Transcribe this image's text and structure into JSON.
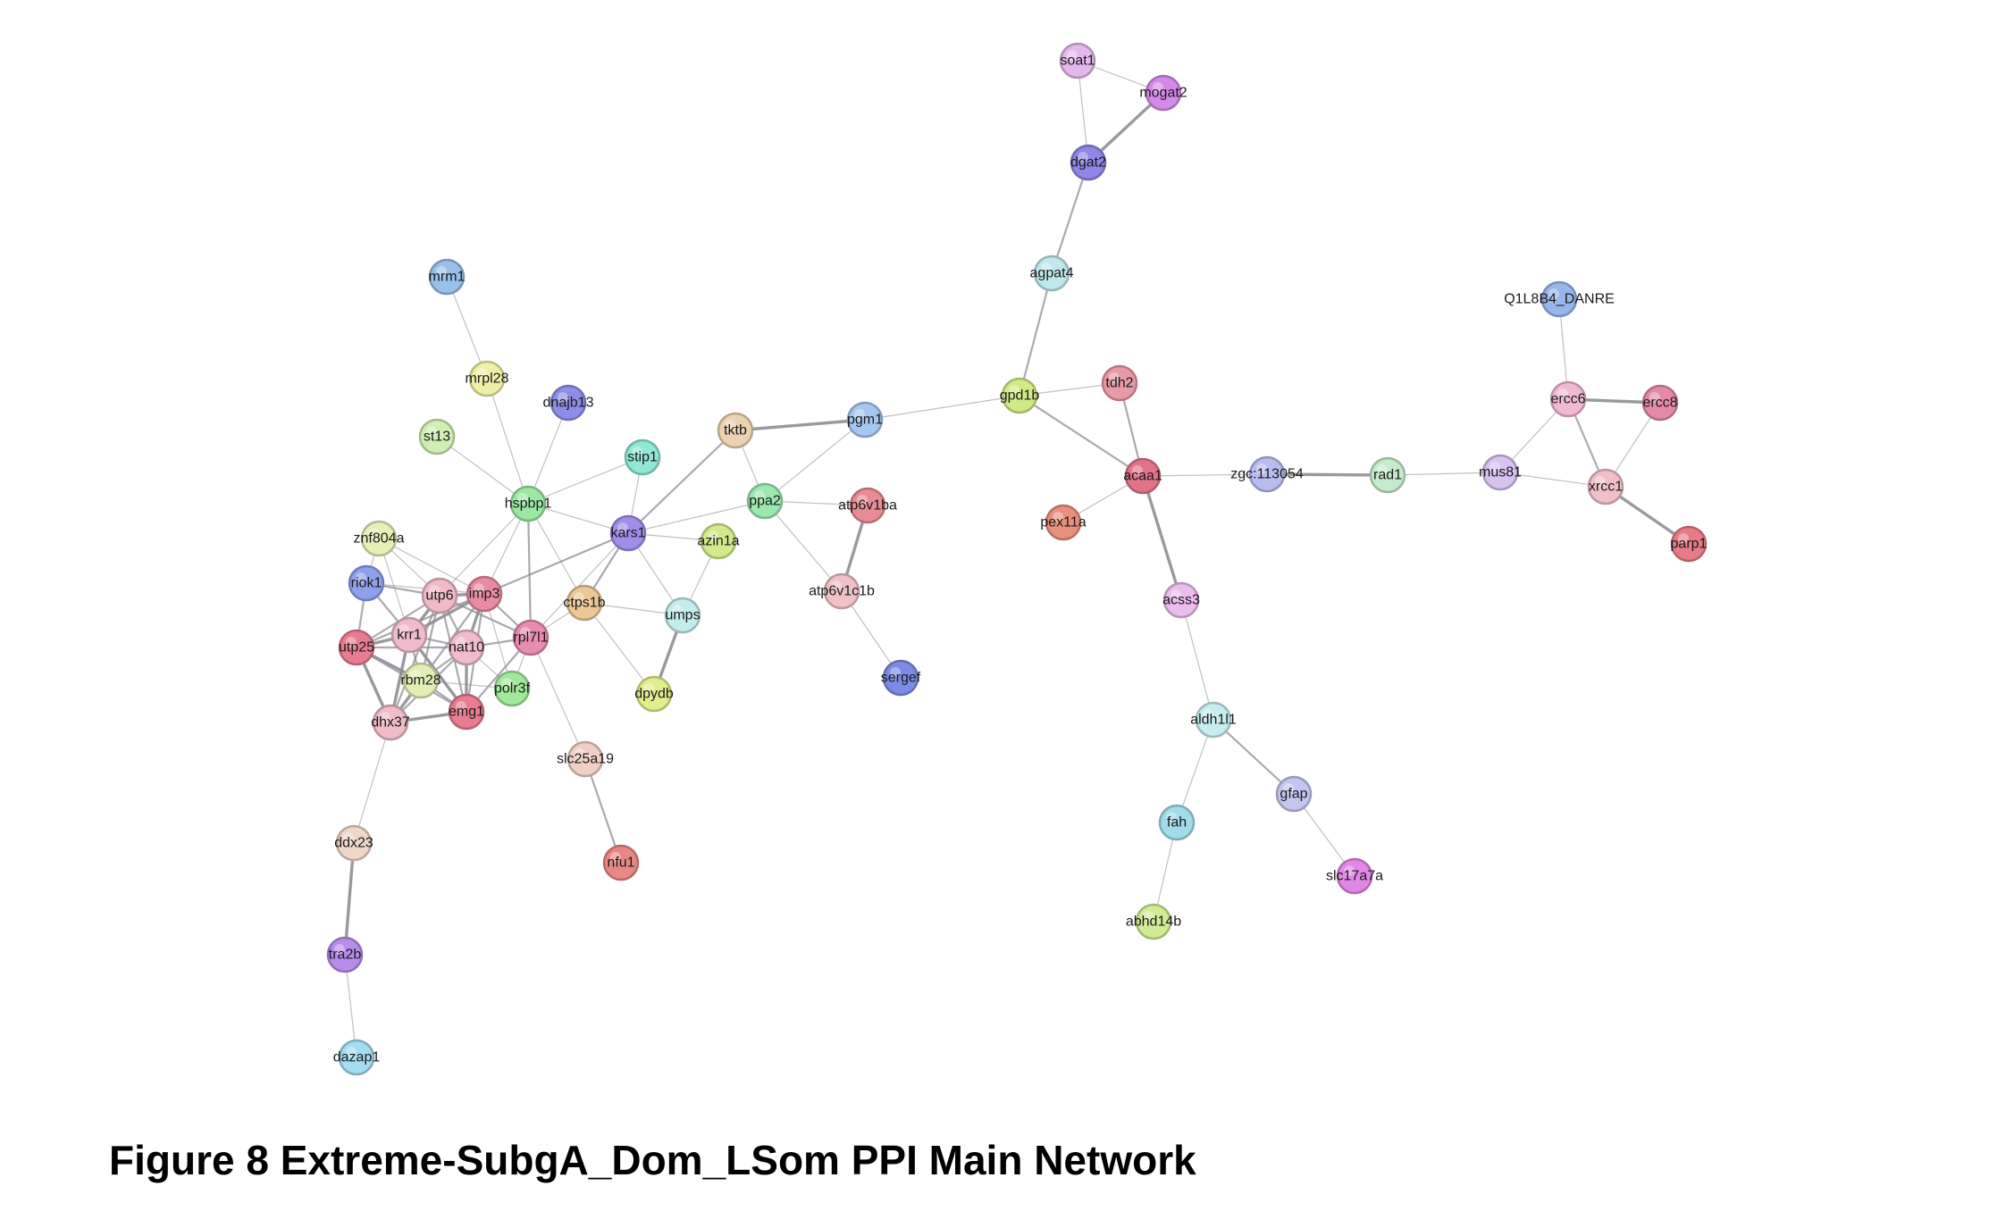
{
  "caption": "Figure 8 Extreme-SubgA_Dom_LSom PPI Main Network",
  "nodes": [
    {
      "id": "soat1",
      "color": "#e3b8ec"
    },
    {
      "id": "mogat2",
      "color": "#d48ae8"
    },
    {
      "id": "dgat2",
      "color": "#8f86e6"
    },
    {
      "id": "agpat4",
      "color": "#bfe8ec"
    },
    {
      "id": "gpd1b",
      "color": "#d2ea86"
    },
    {
      "id": "tdh2",
      "color": "#e89aa6"
    },
    {
      "id": "acaa1",
      "color": "#e2748a"
    },
    {
      "id": "pex11a",
      "color": "#e8907e"
    },
    {
      "id": "zgc:113054",
      "color": "#b8bcf0"
    },
    {
      "id": "rad1",
      "color": "#c4eccc"
    },
    {
      "id": "mus81",
      "color": "#d8c2f0"
    },
    {
      "id": "Q1L8B4_DANRE",
      "color": "#98b6ec"
    },
    {
      "id": "ercc6",
      "color": "#f0bad6"
    },
    {
      "id": "ercc8",
      "color": "#e48aa8"
    },
    {
      "id": "xrcc1",
      "color": "#f0c0c8"
    },
    {
      "id": "parp1",
      "color": "#e87c86"
    },
    {
      "id": "acss3",
      "color": "#ecbcec"
    },
    {
      "id": "aldh1l1",
      "color": "#c6eef0"
    },
    {
      "id": "gfap",
      "color": "#c4c6f0"
    },
    {
      "id": "fah",
      "color": "#a2dcea"
    },
    {
      "id": "slc17a7a",
      "color": "#e286e8"
    },
    {
      "id": "abhd14b",
      "color": "#d2ec96"
    },
    {
      "id": "mrm1",
      "color": "#98c0ea"
    },
    {
      "id": "mrpl28",
      "color": "#eef0a8"
    },
    {
      "id": "dnajb13",
      "color": "#8e8ee8"
    },
    {
      "id": "st13",
      "color": "#d0eeb6"
    },
    {
      "id": "stip1",
      "color": "#90e8d4"
    },
    {
      "id": "tktb",
      "color": "#ecd2b0"
    },
    {
      "id": "pgm1",
      "color": "#a6c8f0"
    },
    {
      "id": "hspbp1",
      "color": "#9ce8a2"
    },
    {
      "id": "ppa2",
      "color": "#9ce8b0"
    },
    {
      "id": "atp6v1ba",
      "color": "#e88c94"
    },
    {
      "id": "znf804a",
      "color": "#e8eeb8"
    },
    {
      "id": "kars1",
      "color": "#a08ee8"
    },
    {
      "id": "azin1a",
      "color": "#d2ea8a"
    },
    {
      "id": "riok1",
      "color": "#8ea0ec"
    },
    {
      "id": "utp6",
      "color": "#f0bac8"
    },
    {
      "id": "imp3",
      "color": "#e88ca2"
    },
    {
      "id": "ctps1b",
      "color": "#ecc896"
    },
    {
      "id": "atp6v1c1b",
      "color": "#f0c2c8"
    },
    {
      "id": "umps",
      "color": "#c4ecec"
    },
    {
      "id": "krr1",
      "color": "#f0bccc"
    },
    {
      "id": "utp25",
      "color": "#e87c90"
    },
    {
      "id": "nat10",
      "color": "#f0bccc"
    },
    {
      "id": "rpl7l1",
      "color": "#e88cb0"
    },
    {
      "id": "sergef",
      "color": "#7c8ce4"
    },
    {
      "id": "rbm28",
      "color": "#e2eeb6"
    },
    {
      "id": "polr3f",
      "color": "#a2e89c"
    },
    {
      "id": "dpydb",
      "color": "#e2ee8c"
    },
    {
      "id": "dhx37",
      "color": "#f0bcc8"
    },
    {
      "id": "emg1",
      "color": "#e87c90"
    },
    {
      "id": "slc25a19",
      "color": "#f0d0c4"
    },
    {
      "id": "nfu1",
      "color": "#e88884"
    },
    {
      "id": "ddx23",
      "color": "#f0d6c8"
    },
    {
      "id": "tra2b",
      "color": "#b88cea"
    },
    {
      "id": "dazap1",
      "color": "#a6dcf0"
    }
  ],
  "edges": [
    [
      "soat1",
      "mogat2",
      1
    ],
    [
      "soat1",
      "dgat2",
      1
    ],
    [
      "mogat2",
      "dgat2",
      3
    ],
    [
      "dgat2",
      "agpat4",
      2
    ],
    [
      "agpat4",
      "gpd1b",
      2
    ],
    [
      "gpd1b",
      "tdh2",
      1
    ],
    [
      "gpd1b",
      "acaa1",
      2
    ],
    [
      "gpd1b",
      "pgm1",
      1
    ],
    [
      "tdh2",
      "acaa1",
      2
    ],
    [
      "acaa1",
      "pex11a",
      1
    ],
    [
      "acaa1",
      "zgc:113054",
      1
    ],
    [
      "acaa1",
      "acss3",
      3
    ],
    [
      "zgc:113054",
      "rad1",
      3
    ],
    [
      "rad1",
      "mus81",
      1
    ],
    [
      "mus81",
      "ercc6",
      1
    ],
    [
      "mus81",
      "xrcc1",
      1
    ],
    [
      "Q1L8B4_DANRE",
      "ercc6",
      1
    ],
    [
      "ercc6",
      "ercc8",
      3
    ],
    [
      "ercc6",
      "xrcc1",
      2
    ],
    [
      "ercc8",
      "xrcc1",
      1
    ],
    [
      "xrcc1",
      "parp1",
      3
    ],
    [
      "acss3",
      "aldh1l1",
      1
    ],
    [
      "aldh1l1",
      "gfap",
      2
    ],
    [
      "aldh1l1",
      "fah",
      1
    ],
    [
      "gfap",
      "slc17a7a",
      1
    ],
    [
      "fah",
      "abhd14b",
      1
    ],
    [
      "mrm1",
      "mrpl28",
      1
    ],
    [
      "mrpl28",
      "hspbp1",
      1
    ],
    [
      "dnajb13",
      "hspbp1",
      1
    ],
    [
      "st13",
      "hspbp1",
      1
    ],
    [
      "stip1",
      "hspbp1",
      1
    ],
    [
      "stip1",
      "kars1",
      1
    ],
    [
      "tktb",
      "pgm1",
      3
    ],
    [
      "tktb",
      "ppa2",
      1
    ],
    [
      "tktb",
      "kars1",
      2
    ],
    [
      "pgm1",
      "ppa2",
      1
    ],
    [
      "ppa2",
      "kars1",
      1
    ],
    [
      "ppa2",
      "atp6v1ba",
      1
    ],
    [
      "ppa2",
      "atp6v1c1b",
      1
    ],
    [
      "atp6v1ba",
      "atp6v1c1b",
      3
    ],
    [
      "atp6v1c1b",
      "sergef",
      1
    ],
    [
      "hspbp1",
      "kars1",
      1
    ],
    [
      "hspbp1",
      "utp6",
      1
    ],
    [
      "hspbp1",
      "imp3",
      1
    ],
    [
      "hspbp1",
      "rpl7l1",
      2
    ],
    [
      "hspbp1",
      "ctps1b",
      1
    ],
    [
      "kars1",
      "imp3",
      2
    ],
    [
      "kars1",
      "ctps1b",
      2
    ],
    [
      "kars1",
      "umps",
      1
    ],
    [
      "kars1",
      "azin1a",
      1
    ],
    [
      "kars1",
      "rpl7l1",
      1
    ],
    [
      "azin1a",
      "umps",
      1
    ],
    [
      "ctps1b",
      "umps",
      1
    ],
    [
      "ctps1b",
      "dpydb",
      1
    ],
    [
      "ctps1b",
      "rpl7l1",
      1
    ],
    [
      "umps",
      "dpydb",
      3
    ],
    [
      "znf804a",
      "utp6",
      1
    ],
    [
      "znf804a",
      "imp3",
      1
    ],
    [
      "znf804a",
      "krr1",
      1
    ],
    [
      "znf804a",
      "riok1",
      1
    ],
    [
      "riok1",
      "utp6",
      2
    ],
    [
      "riok1",
      "krr1",
      2
    ],
    [
      "riok1",
      "utp25",
      2
    ],
    [
      "riok1",
      "imp3",
      1
    ],
    [
      "utp6",
      "imp3",
      3
    ],
    [
      "utp6",
      "krr1",
      3
    ],
    [
      "utp6",
      "utp25",
      2
    ],
    [
      "utp6",
      "nat10",
      2
    ],
    [
      "utp6",
      "rbm28",
      2
    ],
    [
      "utp6",
      "dhx37",
      2
    ],
    [
      "utp6",
      "emg1",
      2
    ],
    [
      "utp6",
      "rpl7l1",
      2
    ],
    [
      "imp3",
      "krr1",
      3
    ],
    [
      "imp3",
      "nat10",
      3
    ],
    [
      "imp3",
      "rpl7l1",
      2
    ],
    [
      "imp3",
      "emg1",
      2
    ],
    [
      "imp3",
      "rbm28",
      2
    ],
    [
      "imp3",
      "utp25",
      2
    ],
    [
      "imp3",
      "polr3f",
      1
    ],
    [
      "krr1",
      "utp25",
      3
    ],
    [
      "krr1",
      "nat10",
      2
    ],
    [
      "krr1",
      "rbm28",
      2
    ],
    [
      "krr1",
      "dhx37",
      3
    ],
    [
      "krr1",
      "emg1",
      3
    ],
    [
      "utp25",
      "rbm28",
      3
    ],
    [
      "utp25",
      "dhx37",
      3
    ],
    [
      "utp25",
      "nat10",
      2
    ],
    [
      "utp25",
      "emg1",
      2
    ],
    [
      "nat10",
      "rbm28",
      2
    ],
    [
      "nat10",
      "emg1",
      3
    ],
    [
      "nat10",
      "rpl7l1",
      2
    ],
    [
      "nat10",
      "polr3f",
      1
    ],
    [
      "nat10",
      "dhx37",
      2
    ],
    [
      "rbm28",
      "dhx37",
      3
    ],
    [
      "rbm28",
      "emg1",
      2
    ],
    [
      "rbm28",
      "polr3f",
      1
    ],
    [
      "dhx37",
      "emg1",
      3
    ],
    [
      "rpl7l1",
      "emg1",
      2
    ],
    [
      "rpl7l1",
      "polr3f",
      1
    ],
    [
      "rpl7l1",
      "slc25a19",
      1
    ],
    [
      "slc25a19",
      "nfu1",
      2
    ],
    [
      "dhx37",
      "ddx23",
      1
    ],
    [
      "ddx23",
      "tra2b",
      3
    ],
    [
      "tra2b",
      "dazap1",
      1
    ]
  ]
}
